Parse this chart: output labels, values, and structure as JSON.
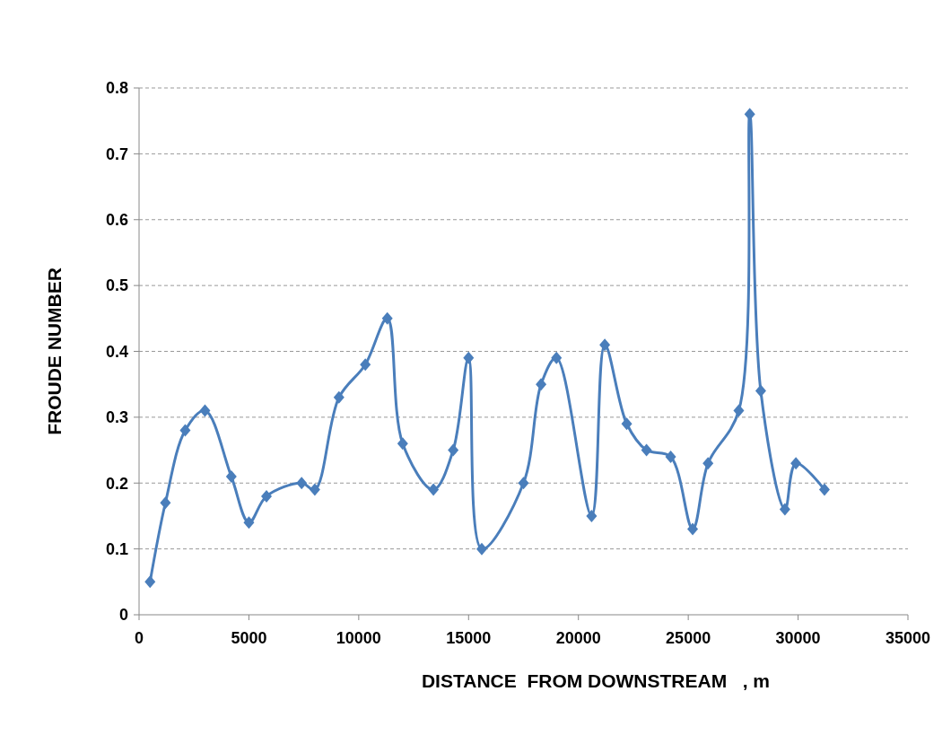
{
  "chart_data": {
    "type": "line",
    "xlabel": "DISTANCE  FROM DOWNSTREAM   , m",
    "ylabel": "FROUDE NUMBER",
    "x": [
      500,
      1200,
      2100,
      3000,
      4200,
      5000,
      5800,
      7400,
      8000,
      9100,
      10300,
      11300,
      12000,
      13400,
      14300,
      15000,
      15600,
      17500,
      18300,
      19000,
      20600,
      21200,
      22200,
      23100,
      24200,
      25200,
      25900,
      27300,
      27800,
      28300,
      29400,
      29900,
      31200
    ],
    "series": [
      {
        "color": "#4a7ebb",
        "values": [
          0.05,
          0.17,
          0.28,
          0.31,
          0.21,
          0.14,
          0.18,
          0.2,
          0.19,
          0.33,
          0.38,
          0.45,
          0.26,
          0.19,
          0.25,
          0.39,
          0.1,
          0.2,
          0.35,
          0.39,
          0.15,
          0.41,
          0.29,
          0.25,
          0.24,
          0.13,
          0.23,
          0.31,
          0.76,
          0.34,
          0.16,
          0.23,
          0.19
        ]
      }
    ],
    "xlim": [
      0,
      35000
    ],
    "xticks": [
      0,
      5000,
      10000,
      15000,
      20000,
      25000,
      30000,
      35000
    ],
    "ylim": [
      0,
      0.8
    ],
    "yticks": [
      0,
      0.1,
      0.2,
      0.3,
      0.4,
      0.5,
      0.6,
      0.7,
      0.8
    ],
    "grid": "y",
    "marker": "diamond",
    "line_style": "solid"
  }
}
